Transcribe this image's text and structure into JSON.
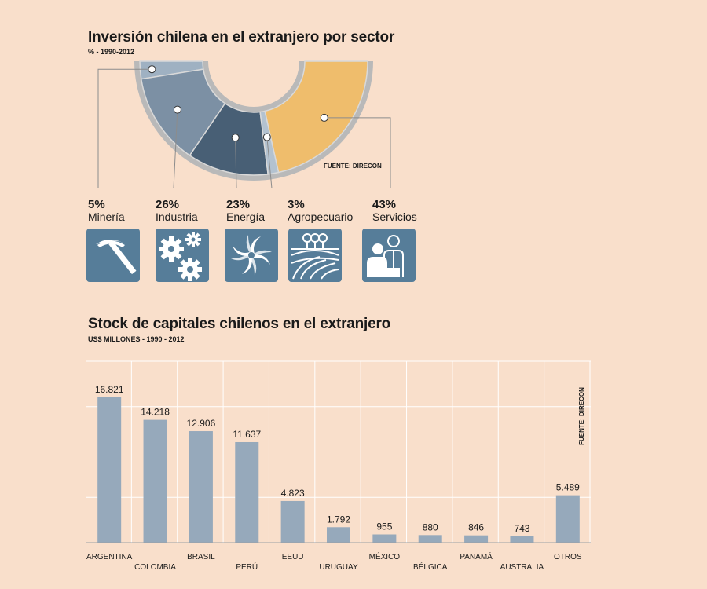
{
  "chart_data": [
    {
      "type": "pie",
      "title": "Inversión chilena en el extranjero por sector",
      "subtitle": "% - 1990-2012",
      "source": "FUENTE: DIRECON",
      "slices": [
        {
          "label": "Minería",
          "value": 5,
          "display": "5%",
          "color": "#9fb1c2",
          "icon": "pickaxe-icon"
        },
        {
          "label": "Industria",
          "value": 26,
          "display": "26%",
          "color": "#7c90a4",
          "icon": "gears-icon"
        },
        {
          "label": "Energía",
          "value": 23,
          "display": "23%",
          "color": "#485f75",
          "icon": "swirl-icon"
        },
        {
          "label": "Agropecuario",
          "value": 3,
          "display": "3%",
          "color": "#b3c2d0",
          "icon": "farm-icon"
        },
        {
          "label": "Servicios",
          "value": 43,
          "display": "43%",
          "color": "#efbd6c",
          "icon": "businesspeople-icon"
        }
      ]
    },
    {
      "type": "bar",
      "title": "Stock de capitales chilenos en el extranjero",
      "subtitle": "US$ MILLONES - 1990 - 2012",
      "source": "FUENTE: DIRECON",
      "categories": [
        "ARGENTINA",
        "COLOMBIA",
        "BRASIL",
        "PERÚ",
        "EEUU",
        "URUGUAY",
        "MÉXICO",
        "BÉLGICA",
        "PANAMÁ",
        "AUSTRALIA",
        "OTROS"
      ],
      "values": [
        16821,
        14218,
        12906,
        11637,
        4823,
        1792,
        955,
        880,
        846,
        743,
        5489
      ],
      "value_labels": [
        "16.821",
        "14.218",
        "12.906",
        "11.637",
        "4.823",
        "1.792",
        "955",
        "880",
        "846",
        "743",
        "5.489"
      ],
      "ylim": [
        0,
        21000
      ],
      "bar_color": "#96a9bb",
      "grid_color": "#ffffff"
    }
  ]
}
